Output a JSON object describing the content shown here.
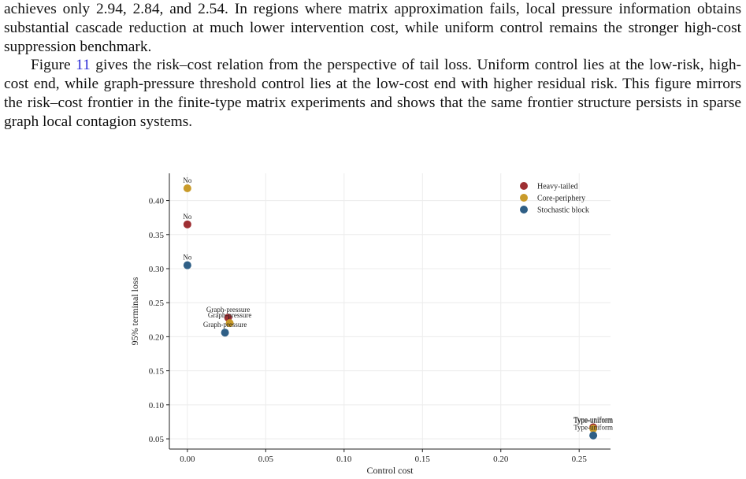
{
  "paragraphs": [
    "achieves only 2.94, 2.84, and 2.54. In regions where matrix approximation fails, local pressure information obtains substantial cascade reduction at much lower intervention cost, while uniform control remains the stronger high-cost suppression benchmark.",
    {
      "before": "Figure",
      "link": "11",
      "after": "gives the risk–cost relation from the perspective of tail loss. Uniform control lies at the low-risk, high-cost end, while graph-pressure threshold control lies at the low-cost end with higher residual risk. This figure mirrors the risk–cost frontier in the finite-type matrix experiments and shows that the same frontier structure persists in sparse graph local contagion systems."
    }
  ],
  "chart_data": {
    "type": "scatter",
    "x_label": "Control cost",
    "y_label": "95% terminal loss",
    "xlim": [
      -0.0115,
      0.27
    ],
    "ylim": [
      0.035,
      0.44
    ],
    "xticks": [
      {
        "value": 0,
        "label": "0.00"
      },
      {
        "value": 0.05,
        "label": "0.05"
      },
      {
        "value": 0.1,
        "label": "0.10"
      },
      {
        "value": 0.15,
        "label": "0.15"
      },
      {
        "value": 0.2,
        "label": "0.20"
      },
      {
        "value": 0.25,
        "label": "0.25"
      }
    ],
    "yticks": [
      {
        "value": 0.05,
        "label": "0.05"
      },
      {
        "value": 0.1,
        "label": "0.10"
      },
      {
        "value": 0.15,
        "label": "0.15"
      },
      {
        "value": 0.2,
        "label": "0.20"
      },
      {
        "value": 0.25,
        "label": "0.25"
      },
      {
        "value": 0.3,
        "label": "0.30"
      },
      {
        "value": 0.35,
        "label": "0.35"
      },
      {
        "value": 0.4,
        "label": "0.40"
      }
    ],
    "grid": true,
    "legend": "upper right",
    "series": [
      {
        "name": "Heavy-tailed",
        "color": "#9e2f33",
        "x": [
          0,
          0.026,
          0.259
        ],
        "values": [
          0.365,
          0.228,
          0.067
        ],
        "labels": [
          "No",
          "Graph-pressure",
          "Type-uniform"
        ]
      },
      {
        "name": "Core-periphery",
        "color": "#c99b2a",
        "x": [
          0,
          0.027,
          0.259
        ],
        "values": [
          0.418,
          0.22,
          0.065
        ],
        "labels": [
          "No",
          "Graph-pressure",
          "Type-uniform"
        ]
      },
      {
        "name": "Stochastic block",
        "color": "#2f5f86",
        "x": [
          0,
          0.024,
          0.259
        ],
        "values": [
          0.305,
          0.206,
          0.055
        ],
        "labels": [
          "No",
          "Graph-pressure",
          "Type-uniform"
        ]
      }
    ]
  }
}
